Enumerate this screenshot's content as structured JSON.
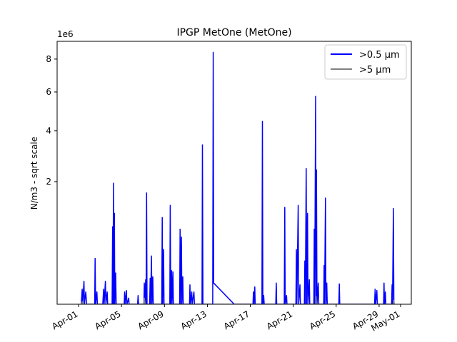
{
  "chart_data": {
    "type": "line",
    "title": "IPGP MetOne (MetOne)",
    "ylabel": "N/m3 - sqrt scale",
    "xlabel": "",
    "y_scale": "sqrt",
    "y_multiplier_label": "1e6",
    "y_unit_multiplier": 1000000,
    "xlim": [
      "2023-03-30T00:00",
      "2023-05-02T00:00"
    ],
    "ylim": [
      0,
      9200000
    ],
    "x_ticks": [
      "Apr-01",
      "Apr-05",
      "Apr-09",
      "Apr-13",
      "Apr-17",
      "Apr-21",
      "Apr-25",
      "Apr-29",
      "May-01"
    ],
    "x_tick_dates": [
      "2023-04-01T00:00",
      "2023-04-05T00:00",
      "2023-04-09T00:00",
      "2023-04-13T00:00",
      "2023-04-17T00:00",
      "2023-04-21T00:00",
      "2023-04-25T00:00",
      "2023-04-29T00:00",
      "2023-05-01T00:00"
    ],
    "y_ticks": [
      2,
      4,
      6,
      8
    ],
    "y_tick_values": [
      2000000,
      4000000,
      6000000,
      8000000
    ],
    "grid": false,
    "legend_position": "top-right",
    "series": [
      {
        "name": ">0.5 µm",
        "color": "#0000ff",
        "points": [
          [
            "2023-04-01T06:00",
            0
          ],
          [
            "2023-04-01T08:00",
            30000
          ],
          [
            "2023-04-01T09:00",
            0
          ],
          [
            "2023-04-01T12:00",
            70000
          ],
          [
            "2023-04-01T13:00",
            0
          ],
          [
            "2023-04-01T16:00",
            20000
          ],
          [
            "2023-04-01T18:00",
            0
          ],
          [
            "2023-04-02T12:00",
            0
          ],
          [
            "2023-04-02T13:00",
            280000
          ],
          [
            "2023-04-02T14:00",
            0
          ],
          [
            "2023-04-02T17:00",
            20000
          ],
          [
            "2023-04-02T18:00",
            0
          ],
          [
            "2023-04-03T06:00",
            0
          ],
          [
            "2023-04-03T08:00",
            30000
          ],
          [
            "2023-04-03T09:00",
            0
          ],
          [
            "2023-04-03T12:00",
            70000
          ],
          [
            "2023-04-03T13:00",
            0
          ],
          [
            "2023-04-03T16:00",
            20000
          ],
          [
            "2023-04-03T17:00",
            0
          ],
          [
            "2023-04-04T03:00",
            0
          ],
          [
            "2023-04-04T04:00",
            800000
          ],
          [
            "2023-04-04T05:00",
            0
          ],
          [
            "2023-04-04T06:00",
            1950000
          ],
          [
            "2023-04-04T07:00",
            0
          ],
          [
            "2023-04-04T08:00",
            1100000
          ],
          [
            "2023-04-04T09:00",
            0
          ],
          [
            "2023-04-04T11:00",
            130000
          ],
          [
            "2023-04-04T12:00",
            0
          ],
          [
            "2023-04-05T06:00",
            0
          ],
          [
            "2023-04-05T07:00",
            20000
          ],
          [
            "2023-04-05T08:00",
            0
          ],
          [
            "2023-04-05T11:00",
            25000
          ],
          [
            "2023-04-05T12:00",
            0
          ],
          [
            "2023-04-05T16:00",
            5000
          ],
          [
            "2023-04-05T17:00",
            0
          ],
          [
            "2023-04-06T12:00",
            0
          ],
          [
            "2023-04-06T13:00",
            10000
          ],
          [
            "2023-04-06T14:00",
            0
          ],
          [
            "2023-04-07T02:00",
            0
          ],
          [
            "2023-04-07T03:00",
            60000
          ],
          [
            "2023-04-07T04:00",
            0
          ],
          [
            "2023-04-07T06:00",
            80000
          ],
          [
            "2023-04-07T07:00",
            0
          ],
          [
            "2023-04-07T08:00",
            1650000
          ],
          [
            "2023-04-07T09:00",
            0
          ],
          [
            "2023-04-07T15:00",
            0
          ],
          [
            "2023-04-07T16:00",
            90000
          ],
          [
            "2023-04-07T17:00",
            0
          ],
          [
            "2023-04-07T19:00",
            310000
          ],
          [
            "2023-04-07T20:00",
            0
          ],
          [
            "2023-04-07T22:00",
            100000
          ],
          [
            "2023-04-07T23:00",
            0
          ],
          [
            "2023-04-08T18:00",
            0
          ],
          [
            "2023-04-08T19:00",
            1000000
          ],
          [
            "2023-04-08T20:00",
            0
          ],
          [
            "2023-04-08T22:00",
            400000
          ],
          [
            "2023-04-08T23:00",
            0
          ],
          [
            "2023-04-09T12:00",
            0
          ],
          [
            "2023-04-09T13:00",
            1300000
          ],
          [
            "2023-04-09T14:00",
            0
          ],
          [
            "2023-04-09T16:00",
            150000
          ],
          [
            "2023-04-09T17:00",
            0
          ],
          [
            "2023-04-09T19:00",
            140000
          ],
          [
            "2023-04-09T20:00",
            0
          ],
          [
            "2023-04-10T10:00",
            0
          ],
          [
            "2023-04-10T11:00",
            750000
          ],
          [
            "2023-04-10T12:00",
            0
          ],
          [
            "2023-04-10T14:00",
            600000
          ],
          [
            "2023-04-10T15:00",
            0
          ],
          [
            "2023-04-10T17:00",
            100000
          ],
          [
            "2023-04-10T18:00",
            0
          ],
          [
            "2023-04-11T08:00",
            0
          ],
          [
            "2023-04-11T09:00",
            50000
          ],
          [
            "2023-04-11T10:00",
            0
          ],
          [
            "2023-04-11T13:00",
            20000
          ],
          [
            "2023-04-11T14:00",
            0
          ],
          [
            "2023-04-11T18:00",
            20000
          ],
          [
            "2023-04-11T19:00",
            0
          ],
          [
            "2023-04-12T12:00",
            0
          ],
          [
            "2023-04-12T13:00",
            3380000
          ],
          [
            "2023-04-12T14:00",
            0
          ],
          [
            "2023-04-13T12:00",
            0
          ],
          [
            "2023-04-13T13:00",
            8450000
          ],
          [
            "2023-04-13T14:00",
            60000
          ],
          [
            "2023-04-15T12:00",
            0
          ],
          [
            "2023-04-17T06:00",
            0
          ],
          [
            "2023-04-17T07:00",
            20000
          ],
          [
            "2023-04-17T08:00",
            0
          ],
          [
            "2023-04-17T10:00",
            40000
          ],
          [
            "2023-04-17T11:00",
            0
          ],
          [
            "2023-04-18T02:00",
            0
          ],
          [
            "2023-04-18T03:00",
            4450000
          ],
          [
            "2023-04-18T04:00",
            0
          ],
          [
            "2023-04-18T06:00",
            10000
          ],
          [
            "2023-04-18T07:00",
            0
          ],
          [
            "2023-04-19T09:00",
            0
          ],
          [
            "2023-04-19T10:00",
            60000
          ],
          [
            "2023-04-19T11:00",
            0
          ],
          [
            "2023-04-20T04:00",
            0
          ],
          [
            "2023-04-20T05:00",
            1250000
          ],
          [
            "2023-04-20T06:00",
            0
          ],
          [
            "2023-04-20T09:00",
            10000
          ],
          [
            "2023-04-20T10:00",
            0
          ],
          [
            "2023-04-21T06:00",
            0
          ],
          [
            "2023-04-21T07:00",
            400000
          ],
          [
            "2023-04-21T08:00",
            0
          ],
          [
            "2023-04-21T11:00",
            1300000
          ],
          [
            "2023-04-21T12:00",
            0
          ],
          [
            "2023-04-21T15:00",
            50000
          ],
          [
            "2023-04-21T16:00",
            0
          ],
          [
            "2023-04-22T01:00",
            0
          ],
          [
            "2023-04-22T02:00",
            250000
          ],
          [
            "2023-04-22T03:00",
            0
          ],
          [
            "2023-04-22T05:00",
            2450000
          ],
          [
            "2023-04-22T06:00",
            0
          ],
          [
            "2023-04-22T08:00",
            1100000
          ],
          [
            "2023-04-22T09:00",
            0
          ],
          [
            "2023-04-22T12:00",
            80000
          ],
          [
            "2023-04-22T13:00",
            0
          ],
          [
            "2023-04-22T22:00",
            0
          ],
          [
            "2023-04-22T23:00",
            750000
          ],
          [
            "2023-04-23T00:00",
            0
          ],
          [
            "2023-04-23T02:00",
            5750000
          ],
          [
            "2023-04-23T03:00",
            0
          ],
          [
            "2023-04-23T04:00",
            2400000
          ],
          [
            "2023-04-23T05:00",
            0
          ],
          [
            "2023-04-23T08:00",
            60000
          ],
          [
            "2023-04-23T09:00",
            0
          ],
          [
            "2023-04-23T20:00",
            0
          ],
          [
            "2023-04-23T21:00",
            200000
          ],
          [
            "2023-04-23T22:00",
            0
          ],
          [
            "2023-04-24T00:00",
            1500000
          ],
          [
            "2023-04-24T01:00",
            0
          ],
          [
            "2023-04-24T03:00",
            60000
          ],
          [
            "2023-04-24T04:00",
            0
          ],
          [
            "2023-04-25T06:00",
            0
          ],
          [
            "2023-04-25T07:00",
            55000
          ],
          [
            "2023-04-25T08:00",
            0
          ],
          [
            "2023-04-28T14:00",
            0
          ],
          [
            "2023-04-28T15:00",
            30000
          ],
          [
            "2023-04-28T16:00",
            0
          ],
          [
            "2023-04-28T19:00",
            25000
          ],
          [
            "2023-04-28T20:00",
            0
          ],
          [
            "2023-04-29T10:00",
            0
          ],
          [
            "2023-04-29T11:00",
            60000
          ],
          [
            "2023-04-29T12:00",
            0
          ],
          [
            "2023-04-29T14:00",
            20000
          ],
          [
            "2023-04-29T15:00",
            0
          ],
          [
            "2023-04-30T04:00",
            0
          ],
          [
            "2023-04-30T05:00",
            50000
          ],
          [
            "2023-04-30T06:00",
            0
          ],
          [
            "2023-04-30T08:00",
            1220000
          ],
          [
            "2023-04-30T09:00",
            0
          ]
        ]
      },
      {
        "name": ">5 µm",
        "color": "#808080",
        "points": [
          [
            "2023-04-01T06:00",
            0
          ],
          [
            "2023-04-01T08:00",
            1000
          ],
          [
            "2023-04-01T09:00",
            0
          ],
          [
            "2023-04-07T02:00",
            0
          ],
          [
            "2023-04-07T03:00",
            5000
          ],
          [
            "2023-04-07T04:00",
            0
          ],
          [
            "2023-04-23T02:00",
            0
          ],
          [
            "2023-04-23T03:00",
            8000
          ],
          [
            "2023-04-23T04:00",
            0
          ],
          [
            "2023-04-30T08:00",
            0
          ],
          [
            "2023-04-30T09:00",
            2000
          ],
          [
            "2023-04-30T10:00",
            0
          ]
        ]
      }
    ]
  }
}
